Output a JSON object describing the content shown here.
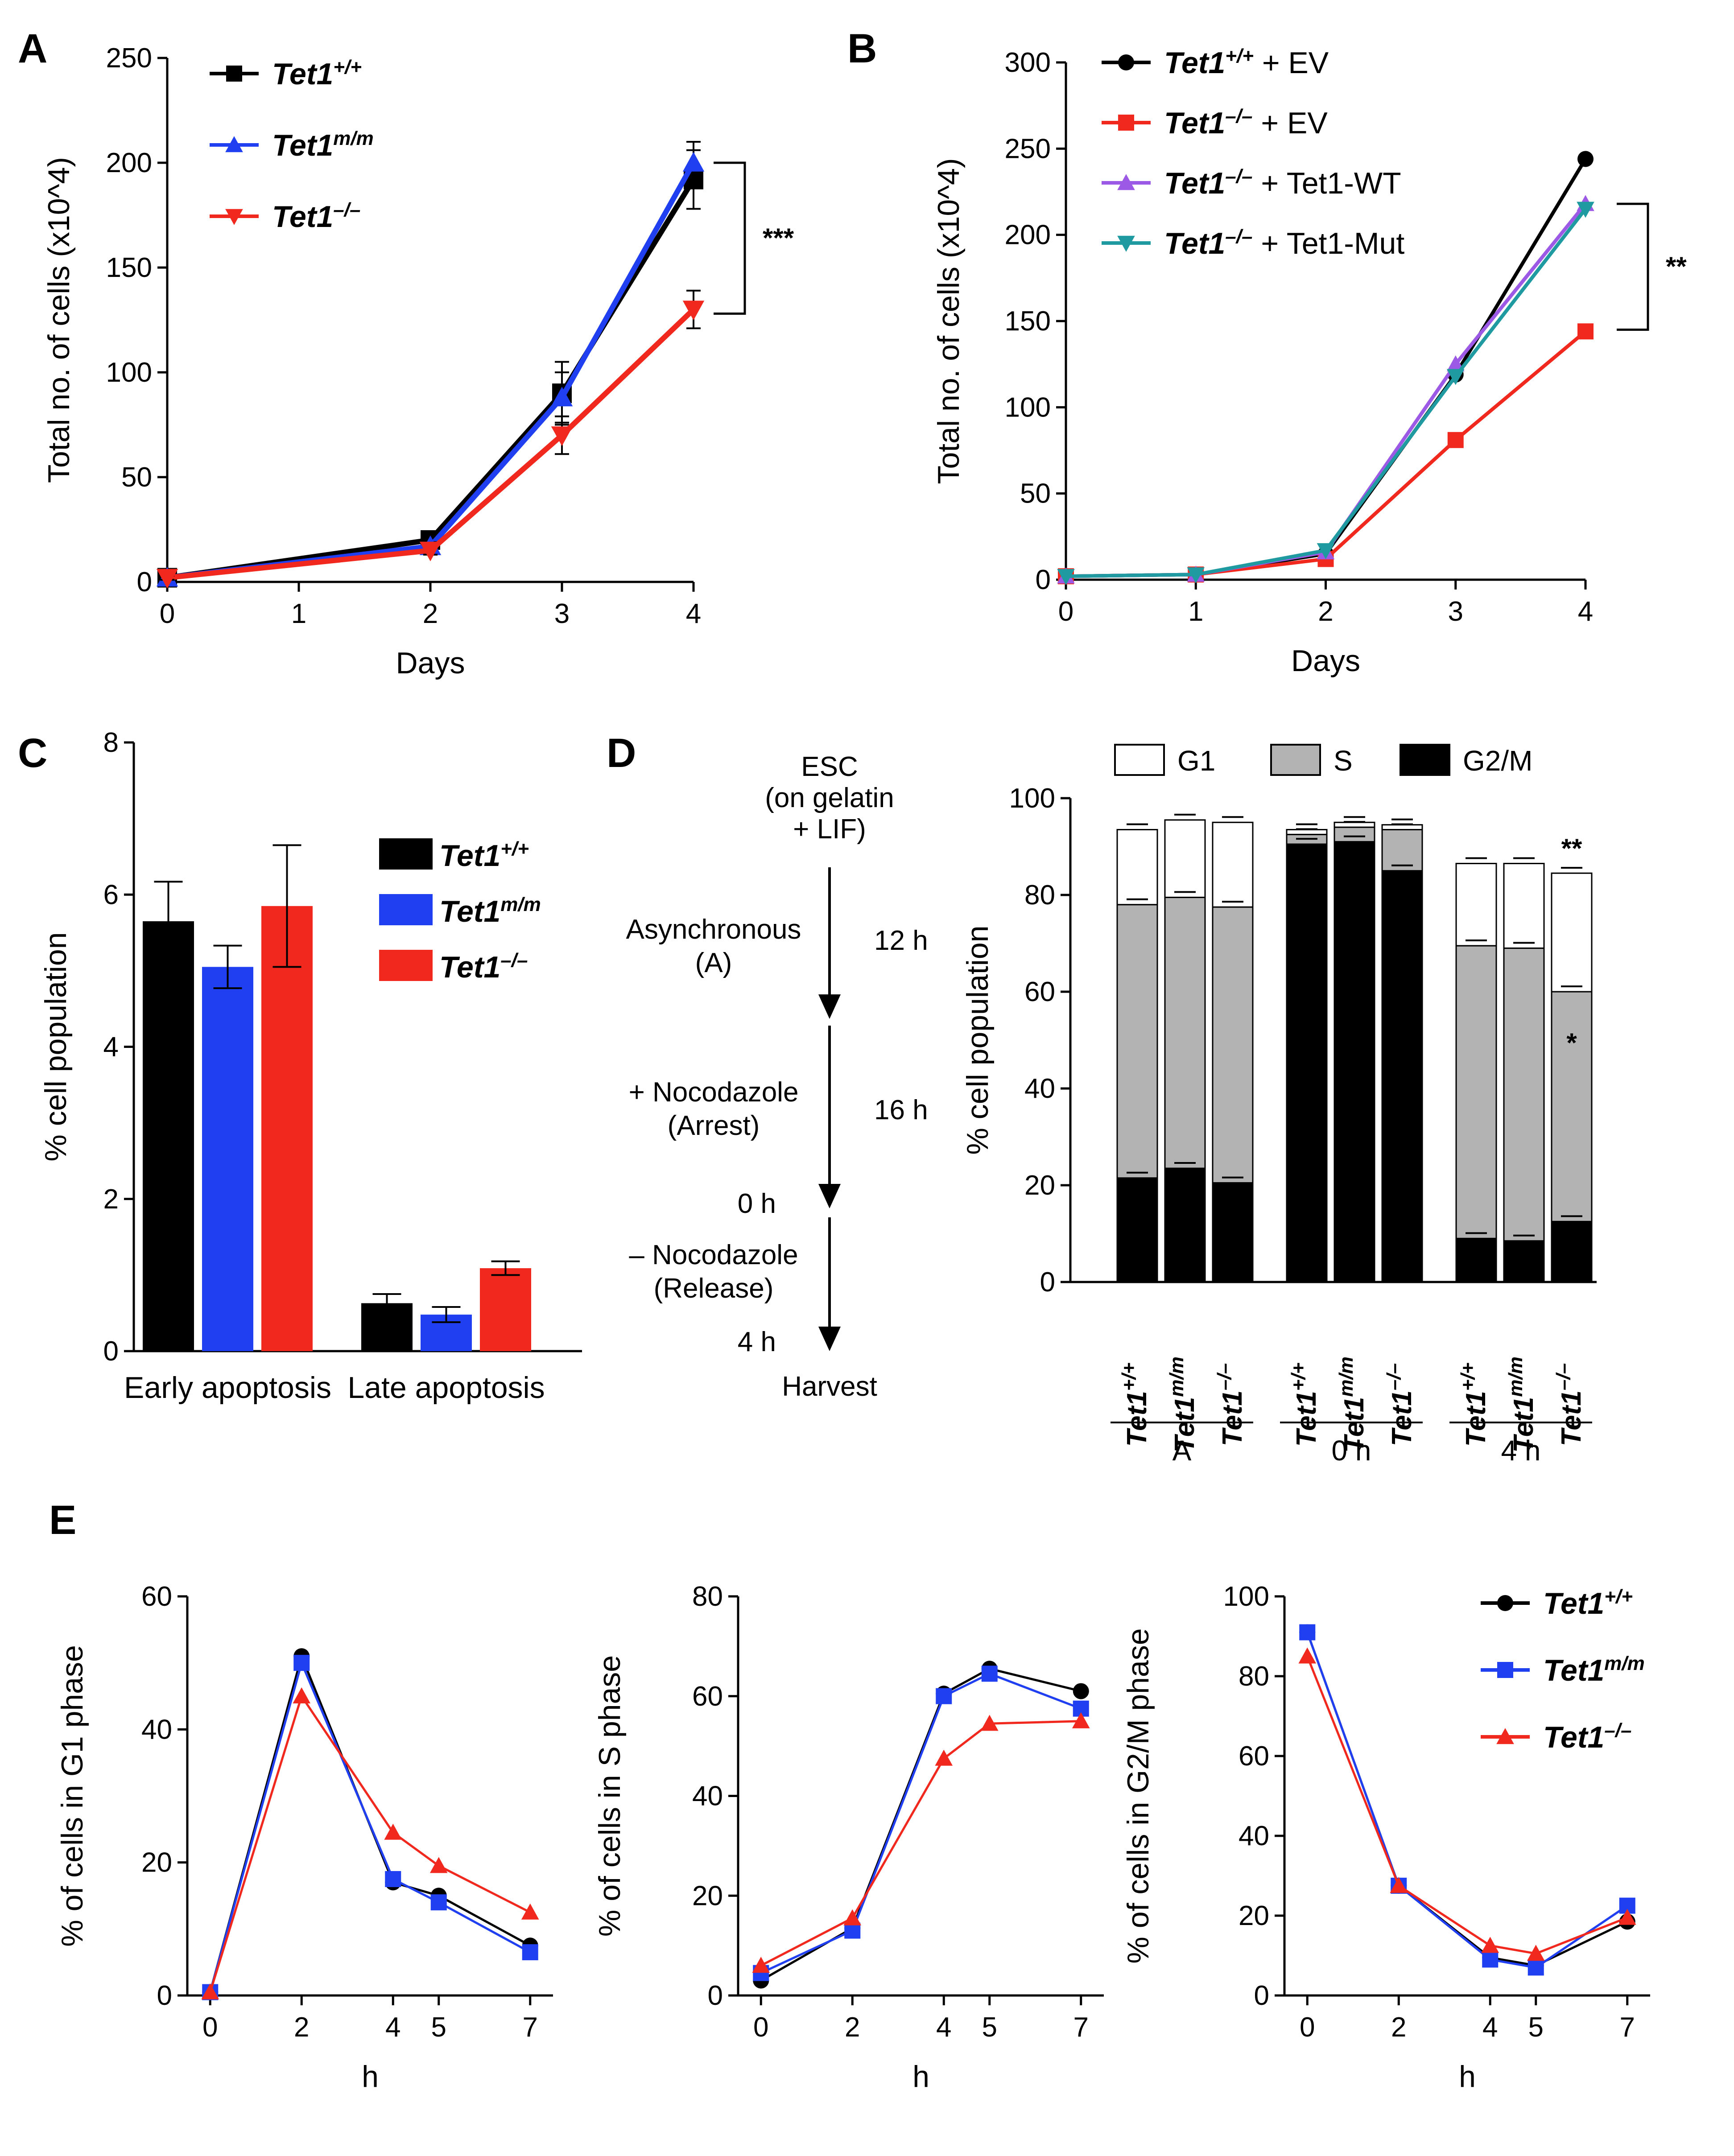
{
  "colors": {
    "black": "#000000",
    "blue": "#1f3ff0",
    "red": "#f0281e",
    "purple": "#9b59e6",
    "teal": "#1f9aa0",
    "gray": "#b3b3b3",
    "white": "#ffffff"
  },
  "panels": {
    "A": {
      "label": "A",
      "chart_data": {
        "type": "line",
        "xlabel": "Days",
        "ylabel": "Total no. of cells (x10^4)",
        "x": [
          0,
          2,
          3,
          4
        ],
        "xticks": [
          0,
          1,
          2,
          3,
          4
        ],
        "xlim": [
          0,
          4
        ],
        "yticks": [
          0,
          50,
          100,
          150,
          200,
          250
        ],
        "ylim": [
          0,
          250
        ],
        "series": [
          {
            "name": "Tet1",
            "sup": "+/+",
            "color": "#000000",
            "marker": "square",
            "values": [
              2,
              20,
              90,
              192
            ],
            "err": [
              1,
              3,
              15,
              14
            ]
          },
          {
            "name": "Tet1",
            "sup": "m/m",
            "color": "#1f3ff0",
            "marker": "triangle-up",
            "values": [
              2,
              17,
              88,
              200
            ],
            "err": [
              1,
              2,
              12,
              10
            ]
          },
          {
            "name": "Tet1",
            "sup": "–/–",
            "color": "#f0281e",
            "marker": "triangle-down",
            "values": [
              2,
              15,
              70,
              130
            ],
            "err": [
              1,
              2,
              9,
              9
            ]
          }
        ],
        "annotations": [
          "***"
        ]
      }
    },
    "B": {
      "label": "B",
      "chart_data": {
        "type": "line",
        "xlabel": "Days",
        "ylabel": "Total no. of cells (x10^4)",
        "x": [
          0,
          1,
          2,
          3,
          4
        ],
        "xticks": [
          0,
          1,
          2,
          3,
          4
        ],
        "xlim": [
          0,
          4
        ],
        "yticks": [
          0,
          50,
          100,
          150,
          200,
          250,
          300
        ],
        "ylim": [
          0,
          300
        ],
        "series": [
          {
            "name": "Tet1",
            "sup": "+/+",
            "suffix": " + EV",
            "color": "#000000",
            "marker": "circle",
            "values": [
              2,
              3,
              15,
              119,
              244
            ]
          },
          {
            "name": "Tet1",
            "sup": "–/–",
            "suffix": " + EV",
            "color": "#f0281e",
            "marker": "square",
            "values": [
              2,
              3,
              12,
              81,
              144
            ]
          },
          {
            "name": "Tet1",
            "sup": "–/–",
            "suffix": " + Tet1-WT",
            "color": "#9b59e6",
            "marker": "triangle-up",
            "values": [
              2,
              3,
              16,
              125,
              218
            ]
          },
          {
            "name": "Tet1",
            "sup": "–/–",
            "suffix": " + Tet1-Mut",
            "color": "#1f9aa0",
            "marker": "triangle-down",
            "values": [
              2,
              3,
              17,
              118,
              215
            ]
          }
        ],
        "annotations": [
          "**"
        ]
      }
    },
    "C": {
      "label": "C",
      "chart_data": {
        "type": "bar",
        "ylabel": "% cell population",
        "categories": [
          "Early apoptosis",
          "Late apoptosis"
        ],
        "yticks": [
          0,
          2,
          4,
          6,
          8
        ],
        "ylim": [
          0,
          8
        ],
        "series": [
          {
            "name": "Tet1",
            "sup": "+/+",
            "color": "#000000",
            "values": [
              5.65,
              0.63
            ],
            "err": [
              0.52,
              0.12
            ]
          },
          {
            "name": "Tet1",
            "sup": "m/m",
            "color": "#1f3ff0",
            "values": [
              5.05,
              0.48
            ],
            "err": [
              0.28,
              0.1
            ]
          },
          {
            "name": "Tet1",
            "sup": "–/–",
            "color": "#f0281e",
            "values": [
              5.85,
              1.09
            ],
            "err": [
              0.8,
              0.09
            ]
          }
        ]
      }
    },
    "D": {
      "label": "D",
      "diagram": {
        "top": "ESC",
        "top2": "(on gelatin",
        "top3": "+ LIF)",
        "step1": "Asynchronous",
        "step1b": "(A)",
        "dur1": "12 h",
        "step2": "+ Nocodazole",
        "step2b": "(Arrest)",
        "dur2": "16 h",
        "t0": "0 h",
        "step3": "– Nocodazole",
        "step3b": "(Release)",
        "t4": "4 h",
        "bottom": "Harvest"
      },
      "chart_data": {
        "type": "bar",
        "stacked": true,
        "ylabel": "% cell population",
        "yticks": [
          0,
          20,
          40,
          60,
          80,
          100
        ],
        "ylim": [
          0,
          100
        ],
        "legend": [
          "G1",
          "S",
          "G2/M"
        ],
        "groups": [
          "A",
          "0 h",
          "4 h"
        ],
        "bars": [
          {
            "name": "Tet1",
            "sup": "+/+",
            "g2m": 21.5,
            "s": 56.5,
            "g1": 15.5
          },
          {
            "name": "Tet1",
            "sup": "m/m",
            "g2m": 23.5,
            "s": 56.0,
            "g1": 16.0
          },
          {
            "name": "Tet1",
            "sup": "–/–",
            "g2m": 20.5,
            "s": 57.0,
            "g1": 17.5
          },
          {
            "name": "Tet1",
            "sup": "+/+",
            "g2m": 90.5,
            "s": 2.0,
            "g1": 1.0
          },
          {
            "name": "Tet1",
            "sup": "m/m",
            "g2m": 91.0,
            "s": 3.0,
            "g1": 1.0
          },
          {
            "name": "Tet1",
            "sup": "–/–",
            "g2m": 85.0,
            "s": 8.5,
            "g1": 1.0
          },
          {
            "name": "Tet1",
            "sup": "+/+",
            "g2m": 9.0,
            "s": 60.5,
            "g1": 17.0
          },
          {
            "name": "Tet1",
            "sup": "m/m",
            "g2m": 8.5,
            "s": 60.5,
            "g1": 17.5
          },
          {
            "name": "Tet1",
            "sup": "–/–",
            "g2m": 12.5,
            "s": 47.5,
            "g1": 24.5
          }
        ],
        "annotations": [
          "**",
          "*"
        ]
      }
    },
    "E": {
      "label": "E",
      "chart_data": [
        {
          "type": "line",
          "xlabel": "h",
          "ylabel": "% of cells in G1 phase",
          "x": [
            0,
            2,
            4,
            5,
            7
          ],
          "xticks": [
            0,
            2,
            4,
            5,
            7
          ],
          "xlim": [
            -0.5,
            7.5
          ],
          "yticks": [
            0,
            20,
            40,
            60
          ],
          "ylim": [
            0,
            60
          ],
          "series": [
            {
              "name": "Tet1",
              "sup": "+/+",
              "color": "#000000",
              "marker": "circle",
              "values": [
                0.5,
                51,
                17,
                15,
                7.5
              ]
            },
            {
              "name": "Tet1",
              "sup": "m/m",
              "color": "#1f3ff0",
              "marker": "square",
              "values": [
                0.5,
                50,
                17.5,
                14,
                6.5
              ]
            },
            {
              "name": "Tet1",
              "sup": "–/–",
              "color": "#f0281e",
              "marker": "triangle-up",
              "values": [
                0.5,
                45,
                24.5,
                19.5,
                12.5
              ]
            }
          ]
        },
        {
          "type": "line",
          "xlabel": "h",
          "ylabel": "% of cells in S phase",
          "x": [
            0,
            2,
            4,
            5,
            7
          ],
          "xticks": [
            0,
            2,
            4,
            5,
            7
          ],
          "xlim": [
            -0.5,
            7.5
          ],
          "yticks": [
            0,
            20,
            40,
            60,
            80
          ],
          "ylim": [
            0,
            80
          ],
          "series": [
            {
              "name": "Tet1",
              "sup": "+/+",
              "color": "#000000",
              "marker": "circle",
              "values": [
                3,
                13.5,
                60.5,
                65.5,
                61
              ]
            },
            {
              "name": "Tet1",
              "sup": "m/m",
              "color": "#1f3ff0",
              "marker": "square",
              "values": [
                4.5,
                13,
                60,
                64.5,
                57.5
              ]
            },
            {
              "name": "Tet1",
              "sup": "–/–",
              "color": "#f0281e",
              "marker": "triangle-up",
              "values": [
                6,
                15.5,
                47.5,
                54.5,
                55
              ]
            }
          ]
        },
        {
          "type": "line",
          "xlabel": "h",
          "ylabel": "% of cells in G2/M phase",
          "x": [
            0,
            2,
            4,
            5,
            7
          ],
          "xticks": [
            0,
            2,
            4,
            5,
            7
          ],
          "xlim": [
            -0.5,
            7.5
          ],
          "yticks": [
            0,
            20,
            40,
            60,
            80,
            100
          ],
          "ylim": [
            0,
            100
          ],
          "series": [
            {
              "name": "Tet1",
              "sup": "+/+",
              "color": "#000000",
              "marker": "circle",
              "values": [
                91,
                27.5,
                9.5,
                7.5,
                18.5
              ]
            },
            {
              "name": "Tet1",
              "sup": "m/m",
              "color": "#1f3ff0",
              "marker": "square",
              "values": [
                91,
                27.5,
                9,
                7,
                22.5
              ]
            },
            {
              "name": "Tet1",
              "sup": "–/–",
              "color": "#f0281e",
              "marker": "triangle-up",
              "values": [
                85,
                27.5,
                12.5,
                10.5,
                19.5
              ]
            }
          ]
        }
      ]
    }
  }
}
